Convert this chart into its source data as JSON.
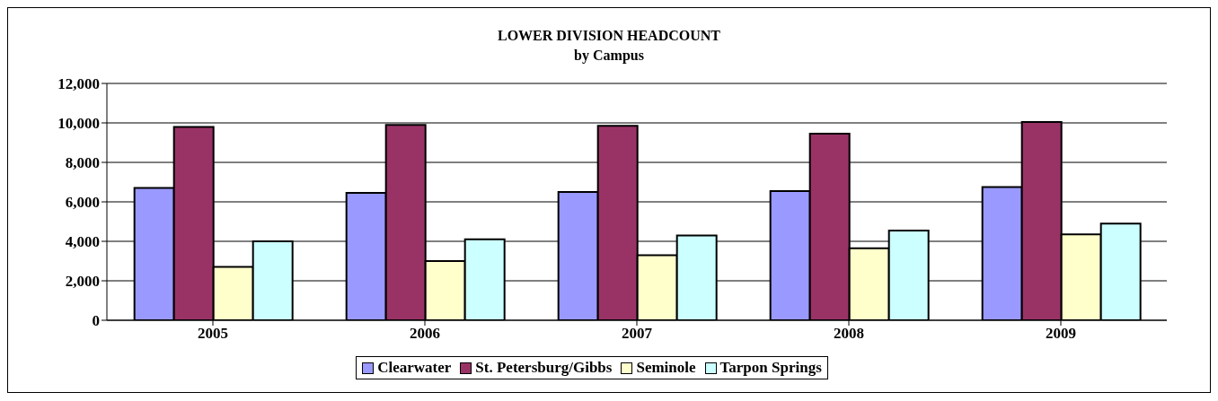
{
  "chart_data": {
    "type": "bar",
    "title": "LOWER DIVISION HEADCOUNT",
    "subtitle": "by Campus",
    "categories": [
      "2005",
      "2006",
      "2007",
      "2008",
      "2009"
    ],
    "series": [
      {
        "name": "Clearwater",
        "color": "#9999ff",
        "values": [
          6700,
          6450,
          6500,
          6550,
          6750
        ]
      },
      {
        "name": "St. Petersburg/Gibbs",
        "color": "#993366",
        "values": [
          9800,
          9900,
          9850,
          9450,
          10050
        ]
      },
      {
        "name": "Seminole",
        "color": "#ffffcc",
        "values": [
          2700,
          3000,
          3300,
          3650,
          4350
        ]
      },
      {
        "name": "Tarpon Springs",
        "color": "#ccffff",
        "values": [
          4000,
          4100,
          4300,
          4550,
          4900
        ]
      }
    ],
    "ylim": [
      0,
      12000
    ],
    "yticks": [
      {
        "value": 0,
        "label": "0"
      },
      {
        "value": 2000,
        "label": "2,000"
      },
      {
        "value": 4000,
        "label": "4,000"
      },
      {
        "value": 6000,
        "label": "6,000"
      },
      {
        "value": 8000,
        "label": "8,000"
      },
      {
        "value": 10000,
        "label": "10,000"
      },
      {
        "value": 12000,
        "label": "12,000"
      }
    ],
    "grid": "y",
    "legend": "bottom"
  }
}
